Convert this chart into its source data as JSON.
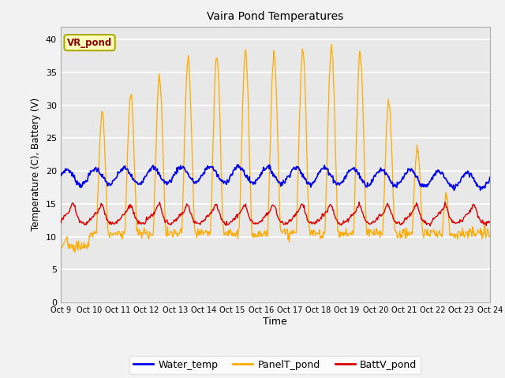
{
  "title": "Vaira Pond Temperatures",
  "xlabel": "Time",
  "ylabel": "Temperature (C), Battery (V)",
  "annotation_text": "VR_pond",
  "x_tick_labels": [
    "Oct 9",
    "Oct 10",
    "Oct 11",
    "Oct 12",
    "Oct 13",
    "Oct 14",
    "Oct 15",
    "Oct 16",
    "Oct 17",
    "Oct 18",
    "Oct 19",
    "Oct 20",
    "Oct 21",
    "Oct 22",
    "Oct 23",
    "Oct 24"
  ],
  "ylim": [
    0,
    42
  ],
  "yticks": [
    0,
    5,
    10,
    15,
    20,
    25,
    30,
    35,
    40
  ],
  "water_temp_color": "#0000ee",
  "panel_temp_color": "#ffaa00",
  "batt_color": "#dd0000",
  "fig_bg_color": "#f2f2f2",
  "plot_bg_color": "#e8e8e8",
  "legend_labels": [
    "Water_temp",
    "PanelT_pond",
    "BattV_pond"
  ],
  "n_days": 15,
  "n_per_day": 48
}
